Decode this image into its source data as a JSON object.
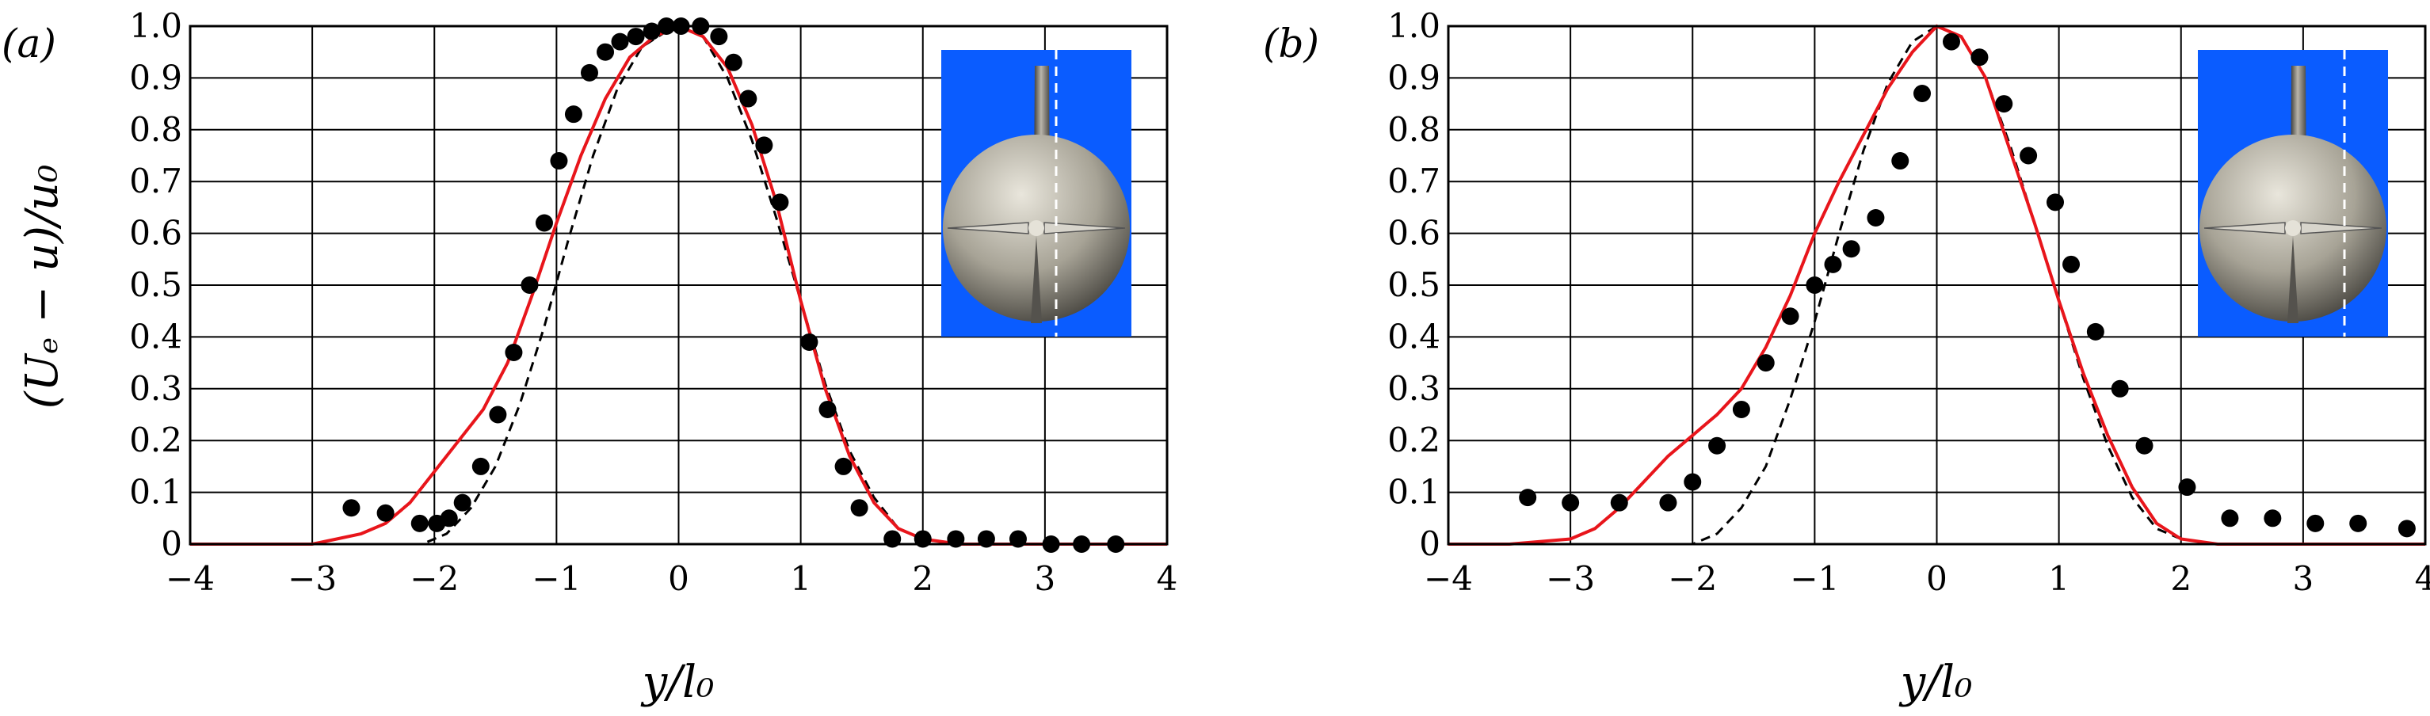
{
  "chart_data": [
    {
      "type": "line",
      "panel_label": "(a)",
      "xlabel": "y/l₀",
      "ylabel": "(Uₑ − u)/u₀",
      "xlim": [
        -4,
        4
      ],
      "ylim": [
        0,
        1.0
      ],
      "xticks": [
        "−4",
        "−3",
        "−2",
        "−1",
        "0",
        "1",
        "2",
        "3",
        "4"
      ],
      "yticks": [
        "0",
        "0.1",
        "0.2",
        "0.3",
        "0.4",
        "0.5",
        "0.6",
        "0.7",
        "0.8",
        "0.9",
        "1.0"
      ],
      "grid": true,
      "legend": "none",
      "series": [
        {
          "style": "markers",
          "color": "#000000",
          "x": [
            -2.68,
            -2.4,
            -2.12,
            -1.98,
            -1.88,
            -1.77,
            -1.62,
            -1.48,
            -1.35,
            -1.22,
            -1.1,
            -0.98,
            -0.86,
            -0.73,
            -0.6,
            -0.48,
            -0.35,
            -0.22,
            -0.1,
            0.02,
            0.18,
            0.33,
            0.45,
            0.57,
            0.7,
            0.83,
            1.07,
            1.22,
            1.35,
            1.48,
            1.75,
            2.0,
            2.27,
            2.52,
            2.78,
            3.05,
            3.3,
            3.58
          ],
          "y": [
            0.07,
            0.06,
            0.04,
            0.04,
            0.05,
            0.08,
            0.15,
            0.25,
            0.37,
            0.5,
            0.62,
            0.74,
            0.83,
            0.91,
            0.95,
            0.97,
            0.98,
            0.99,
            1.0,
            1.0,
            1.0,
            0.98,
            0.93,
            0.86,
            0.77,
            0.66,
            0.39,
            0.26,
            0.15,
            0.07,
            0.01,
            0.01,
            0.01,
            0.01,
            0.01,
            0.0,
            0.0,
            0.0
          ]
        },
        {
          "style": "solid",
          "color": "#e8151b",
          "x": [
            -4,
            -3.5,
            -3.0,
            -2.8,
            -2.6,
            -2.4,
            -2.2,
            -2.0,
            -1.8,
            -1.6,
            -1.4,
            -1.2,
            -1.0,
            -0.8,
            -0.6,
            -0.4,
            -0.2,
            0.0,
            0.2,
            0.4,
            0.6,
            0.8,
            1.0,
            1.2,
            1.4,
            1.6,
            1.8,
            2.0,
            2.3,
            2.6,
            3.0,
            3.5,
            4.0
          ],
          "y": [
            0.0,
            0.0,
            0.0,
            0.01,
            0.02,
            0.04,
            0.08,
            0.14,
            0.2,
            0.26,
            0.35,
            0.48,
            0.62,
            0.75,
            0.86,
            0.94,
            0.98,
            1.0,
            0.98,
            0.92,
            0.81,
            0.66,
            0.47,
            0.3,
            0.17,
            0.08,
            0.03,
            0.01,
            0.0,
            0.0,
            0.0,
            0.0,
            0.0
          ]
        },
        {
          "style": "dashed",
          "color": "#000000",
          "x": [
            -4,
            -3,
            -2.5,
            -2.1,
            -1.9,
            -1.7,
            -1.5,
            -1.3,
            -1.1,
            -0.9,
            -0.7,
            -0.5,
            -0.3,
            -0.1,
            0.0,
            0.2,
            0.4,
            0.6,
            0.8,
            1.0,
            1.2,
            1.4,
            1.6,
            1.8,
            2.0,
            2.3,
            2.6,
            3.0,
            4.0
          ],
          "y": [
            0.0,
            0.0,
            0.0,
            0.0,
            0.02,
            0.07,
            0.15,
            0.27,
            0.42,
            0.59,
            0.75,
            0.88,
            0.96,
            0.99,
            1.0,
            0.98,
            0.9,
            0.78,
            0.63,
            0.47,
            0.31,
            0.18,
            0.09,
            0.03,
            0.01,
            0.0,
            0.0,
            0.0,
            0.0
          ]
        }
      ],
      "inset": {
        "background": "#0a5cff",
        "body": "#b7b2a6",
        "line": "#ffffff"
      }
    },
    {
      "type": "line",
      "panel_label": "(b)",
      "xlabel": "y/l₀",
      "ylabel": "",
      "xlim": [
        -4,
        4
      ],
      "ylim": [
        0,
        1.0
      ],
      "xticks": [
        "−4",
        "−3",
        "−2",
        "−1",
        "0",
        "1",
        "2",
        "3",
        "4"
      ],
      "yticks": [
        "0",
        "0.1",
        "0.2",
        "0.3",
        "0.4",
        "0.5",
        "0.6",
        "0.7",
        "0.8",
        "0.9",
        "1.0"
      ],
      "grid": true,
      "legend": "none",
      "series": [
        {
          "style": "markers",
          "color": "#000000",
          "x": [
            -3.35,
            -3.0,
            -2.6,
            -2.2,
            -2.0,
            -1.8,
            -1.6,
            -1.4,
            -1.2,
            -1.0,
            -0.85,
            -0.7,
            -0.5,
            -0.3,
            -0.12,
            0.12,
            0.35,
            0.55,
            0.75,
            0.97,
            1.1,
            1.3,
            1.5,
            1.7,
            2.05,
            2.4,
            2.75,
            3.1,
            3.45,
            3.85
          ],
          "y": [
            0.09,
            0.08,
            0.08,
            0.08,
            0.12,
            0.19,
            0.26,
            0.35,
            0.44,
            0.5,
            0.54,
            0.57,
            0.63,
            0.74,
            0.87,
            0.97,
            0.94,
            0.85,
            0.75,
            0.66,
            0.54,
            0.41,
            0.3,
            0.19,
            0.11,
            0.05,
            0.05,
            0.04,
            0.04,
            0.03
          ]
        },
        {
          "style": "solid",
          "color": "#e8151b",
          "x": [
            -4,
            -3.5,
            -3.0,
            -2.8,
            -2.6,
            -2.4,
            -2.2,
            -2.0,
            -1.8,
            -1.6,
            -1.4,
            -1.2,
            -1.0,
            -0.8,
            -0.6,
            -0.4,
            -0.2,
            0.0,
            0.2,
            0.4,
            0.6,
            0.8,
            1.0,
            1.2,
            1.4,
            1.6,
            1.8,
            2.0,
            2.3,
            2.6,
            3.0,
            3.5,
            4.0
          ],
          "y": [
            0.0,
            0.0,
            0.01,
            0.03,
            0.07,
            0.12,
            0.17,
            0.21,
            0.25,
            0.3,
            0.38,
            0.48,
            0.6,
            0.7,
            0.79,
            0.88,
            0.95,
            1.0,
            0.98,
            0.9,
            0.76,
            0.62,
            0.47,
            0.33,
            0.21,
            0.11,
            0.04,
            0.01,
            0.0,
            0.0,
            0.0,
            0.0,
            0.0
          ]
        },
        {
          "style": "dashed",
          "color": "#000000",
          "x": [
            -4,
            -3,
            -2.5,
            -2.0,
            -1.8,
            -1.6,
            -1.4,
            -1.2,
            -1.0,
            -0.8,
            -0.6,
            -0.4,
            -0.2,
            0.0,
            0.2,
            0.4,
            0.6,
            0.8,
            1.0,
            1.2,
            1.4,
            1.6,
            1.8,
            2.0,
            2.3,
            2.6,
            3.0,
            4.0
          ],
          "y": [
            0.0,
            0.0,
            0.0,
            0.0,
            0.02,
            0.07,
            0.15,
            0.28,
            0.43,
            0.6,
            0.76,
            0.89,
            0.97,
            1.0,
            0.98,
            0.9,
            0.77,
            0.62,
            0.47,
            0.32,
            0.19,
            0.09,
            0.03,
            0.01,
            0.0,
            0.0,
            0.0,
            0.0
          ]
        }
      ],
      "inset": {
        "background": "#0a5cff",
        "body": "#b7b2a6",
        "line": "#ffffff"
      }
    }
  ]
}
